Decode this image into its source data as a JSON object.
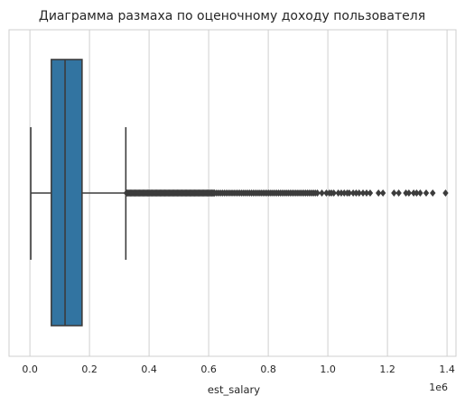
{
  "chart_data": {
    "type": "box",
    "orientation": "horizontal",
    "title": "Диаграмма размаха по оценочному доходу пользователя",
    "xlabel": "est_salary",
    "ylabel": "",
    "x_scale_label": "1e6",
    "xlim": [
      -70000,
      1430000
    ],
    "x_ticks": [
      0,
      200000,
      400000,
      600000,
      800000,
      1000000,
      1200000,
      1400000
    ],
    "x_tick_labels": [
      "0.0",
      "0.2",
      "0.4",
      "0.6",
      "0.8",
      "1.0",
      "1.2",
      "1.4"
    ],
    "grid": "vertical",
    "box": {
      "whisker_low": 3000,
      "q1": 72000,
      "median": 118000,
      "q3": 175000,
      "whisker_high": 322000
    },
    "outliers": {
      "dense_range": [
        324000,
        620000
      ],
      "medium_range": [
        620000,
        960000
      ],
      "sparse_points": [
        965000,
        980000,
        995000,
        1005000,
        1012000,
        1020000,
        1035000,
        1045000,
        1055000,
        1065000,
        1072000,
        1085000,
        1095000,
        1105000,
        1118000,
        1130000,
        1142000,
        1170000,
        1185000,
        1222000,
        1238000,
        1262000,
        1272000,
        1288000,
        1298000,
        1310000,
        1330000,
        1352000,
        1395000
      ]
    },
    "colors": {
      "box_fill": "#3274a1",
      "lines": "#3c3c3c",
      "grid": "#cfcfcf",
      "outlier": "#3c3c3c"
    }
  }
}
